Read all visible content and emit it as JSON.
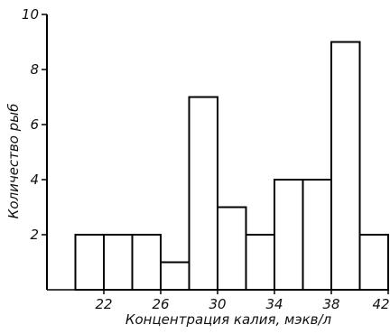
{
  "chart_data": {
    "type": "bar",
    "title": "",
    "xlabel": "Концентрация калия, мэкв/л",
    "ylabel": "Количество рыб",
    "xlim": [
      18,
      42
    ],
    "ylim": [
      0,
      10
    ],
    "x_ticks": [
      "22",
      "26",
      "30",
      "34",
      "38",
      "42"
    ],
    "y_ticks": [
      "2",
      "4",
      "6",
      "8",
      "10"
    ],
    "bin_width": 2,
    "bins": [
      {
        "start": 20,
        "end": 22,
        "value": 2
      },
      {
        "start": 22,
        "end": 24,
        "value": 2
      },
      {
        "start": 24,
        "end": 26,
        "value": 2
      },
      {
        "start": 26,
        "end": 28,
        "value": 1
      },
      {
        "start": 28,
        "end": 30,
        "value": 7
      },
      {
        "start": 30,
        "end": 32,
        "value": 3
      },
      {
        "start": 32,
        "end": 34,
        "value": 2
      },
      {
        "start": 34,
        "end": 36,
        "value": 4
      },
      {
        "start": 36,
        "end": 38,
        "value": 4
      },
      {
        "start": 38,
        "end": 40,
        "value": 9
      },
      {
        "start": 40,
        "end": 42,
        "value": 2
      }
    ],
    "grid": false,
    "bar_fill": "#ffffff",
    "bar_stroke": "#000000"
  }
}
